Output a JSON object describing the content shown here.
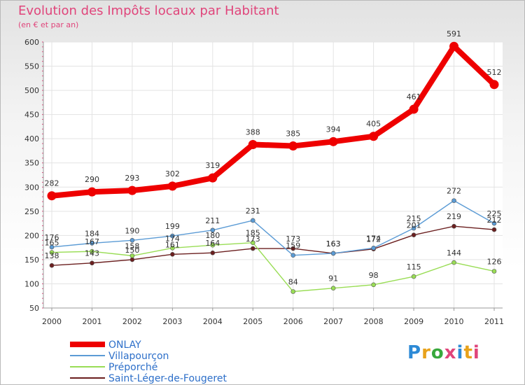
{
  "chart_data": {
    "type": "line",
    "title": "Evolution des Impôts locaux par Habitant",
    "subtitle": "(en € et par an)",
    "categories": [
      "2000",
      "2001",
      "2002",
      "2003",
      "2004",
      "2005",
      "2006",
      "2007",
      "2008",
      "2009",
      "2010",
      "2011"
    ],
    "ylim": [
      50,
      600
    ],
    "yticks": [
      50,
      100,
      150,
      200,
      250,
      300,
      350,
      400,
      450,
      500,
      550,
      600
    ],
    "series": [
      {
        "name": "ONLAY",
        "color": "#ee0000",
        "values": [
          282,
          290,
          293,
          302,
          319,
          388,
          385,
          394,
          405,
          461,
          591,
          512
        ]
      },
      {
        "name": "Villapourçon",
        "color": "#5b9bd5",
        "values": [
          176,
          184,
          190,
          199,
          211,
          231,
          159,
          163,
          174,
          215,
          272,
          225
        ]
      },
      {
        "name": "Préporché",
        "color": "#99dd55",
        "values": [
          165,
          167,
          158,
          174,
          180,
          185,
          84,
          91,
          98,
          115,
          144,
          126
        ]
      },
      {
        "name": "Saint-Léger-de-Fougeret",
        "color": "#6b1f1f",
        "values": [
          138,
          143,
          150,
          161,
          164,
          173,
          173,
          163,
          172,
          201,
          219,
          212
        ]
      }
    ]
  },
  "logo": {
    "text": "Proxiti",
    "colors": [
      "#2d8ad6",
      "#e8a21b",
      "#38a83c",
      "#e0457b",
      "#2d8ad6",
      "#e8a21b",
      "#e0457b"
    ]
  }
}
